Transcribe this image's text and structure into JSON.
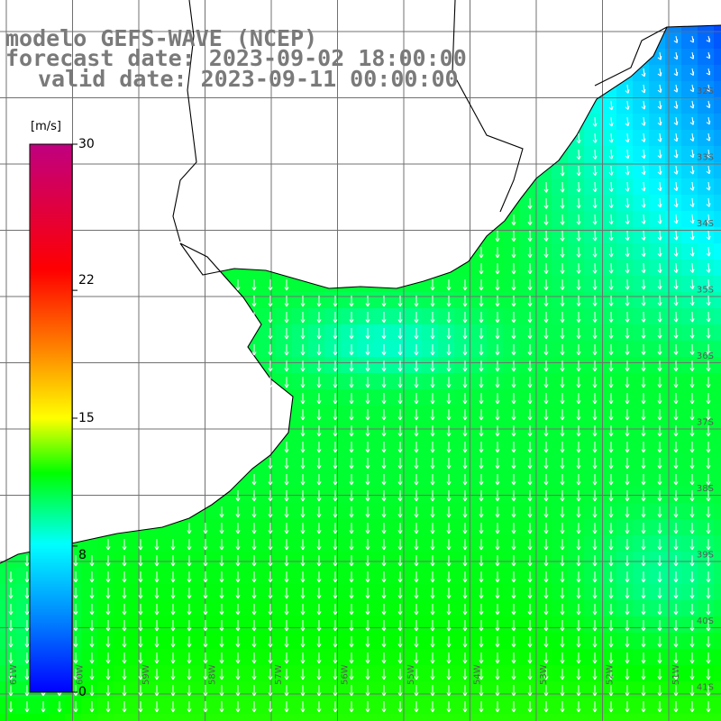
{
  "title": {
    "line1": "modelo GEFS-WAVE (NCEP)",
    "line2": "forecast date: 2023-09-02 18:00:00",
    "line3": "valid date: 2023-09-11 00:00:00"
  },
  "legend": {
    "unit": "[m/s]",
    "min": 0,
    "max": 30,
    "ticks": [
      {
        "value": 30,
        "label": "30"
      },
      {
        "value": 22,
        "label": "22"
      },
      {
        "value": 15,
        "label": "15"
      },
      {
        "value": 8,
        "label": "8"
      },
      {
        "value": 0,
        "label": "0"
      }
    ]
  },
  "lat_labels": [
    "32S",
    "33S",
    "34S",
    "35S",
    "36S",
    "37S",
    "38S",
    "39S",
    "40S",
    "41S"
  ],
  "lon_labels": [
    "61W",
    "60W",
    "59W",
    "58W",
    "57W",
    "56W",
    "55W",
    "54W",
    "53W",
    "52W",
    "51W"
  ],
  "colors": {
    "land": "#ffffff",
    "grid": "#707070",
    "coast": "#000000",
    "arrows": "#ffffff",
    "title": "#7a7a7a"
  }
}
